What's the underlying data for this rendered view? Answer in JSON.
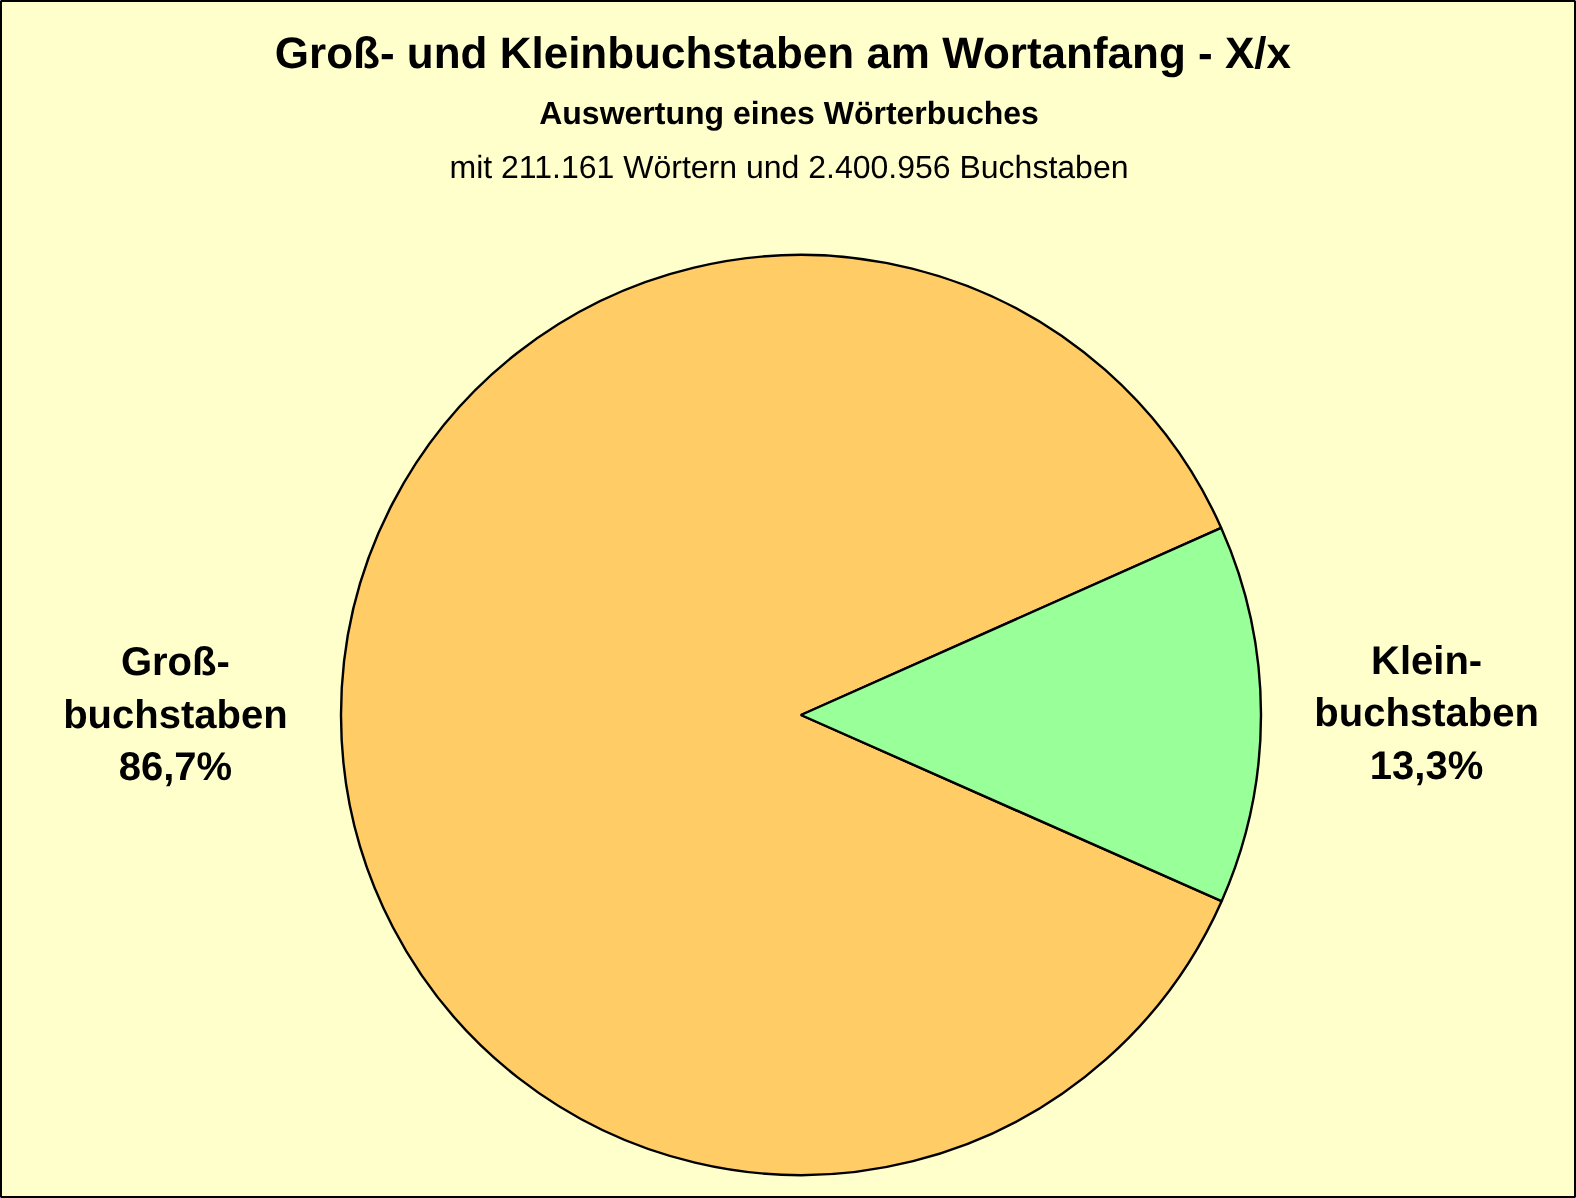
{
  "chart_data": {
    "type": "pie",
    "title": "Groß- und  Kleinbuchstaben am Wortanfang - X/x",
    "subtitle": "Auswertung eines Wörterbuches",
    "annotations": [
      "mit 211.161 Wörtern und 2.400.956 Buchstaben"
    ],
    "categories": [
      "Groß-\nbuchstaben",
      "Klein-\nbuchstaben"
    ],
    "values": [
      86.7,
      13.3
    ],
    "colors": [
      "#ffcc66",
      "#99ff99"
    ],
    "value_labels": [
      "86,7%",
      "13,3%"
    ]
  }
}
